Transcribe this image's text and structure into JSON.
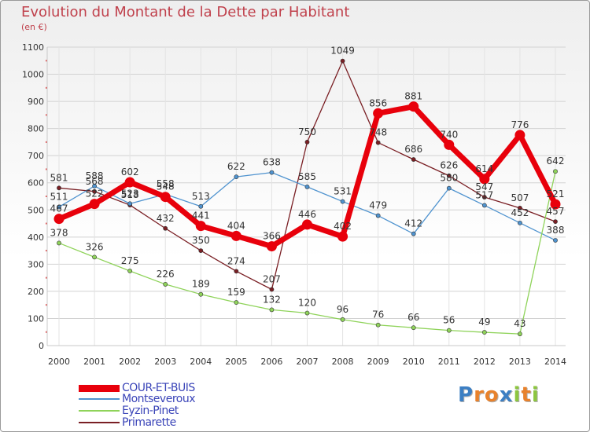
{
  "title": "Evolution du Montant de la Dette par Habitant",
  "unit_label": "(en €)",
  "logo": {
    "letters": [
      "P",
      "r",
      "o",
      "x",
      "i",
      "t",
      "i"
    ],
    "colors": [
      "#3c7fc3",
      "#e8822c",
      "#e8822c",
      "#3c7fc3",
      "#8dc63f",
      "#e8822c",
      "#8dc63f"
    ]
  },
  "chart_data": {
    "type": "line",
    "x": [
      "2000",
      "2001",
      "2002",
      "2003",
      "2004",
      "2005",
      "2006",
      "2007",
      "2008",
      "2009",
      "2010",
      "2011",
      "2012",
      "2013",
      "2014"
    ],
    "ylim": [
      0,
      1100
    ],
    "yticks": [
      "0",
      "100",
      "200",
      "300",
      "400",
      "500",
      "600",
      "700",
      "800",
      "900",
      "1000",
      "1100"
    ],
    "grid": true,
    "legend_position": "bottom-left",
    "series": [
      {
        "name": "COUR-ET-BUIS",
        "color": "#e8000b",
        "values": [
          467,
          522,
          602,
          548,
          441,
          404,
          366,
          446,
          402,
          856,
          881,
          740,
          614,
          776,
          521
        ]
      },
      {
        "name": "Montseveroux",
        "color": "#4f93cf",
        "values": [
          511,
          588,
          523,
          558,
          513,
          622,
          638,
          585,
          531,
          479,
          412,
          580,
          517,
          452,
          388
        ]
      },
      {
        "name": "Eyzin-Pinet",
        "color": "#8fd35a",
        "values": [
          378,
          326,
          275,
          226,
          189,
          159,
          132,
          120,
          96,
          76,
          66,
          56,
          49,
          43,
          642
        ]
      },
      {
        "name": "Primarette",
        "color": "#7a1f24",
        "values": [
          581,
          568,
          518,
          432,
          350,
          274,
          207,
          750,
          1049,
          748,
          686,
          626,
          547,
          507,
          457
        ]
      }
    ],
    "draw_order": [
      "Primarette",
      "Montseveroux",
      "Eyzin-Pinet",
      "COUR-ET-BUIS"
    ],
    "label_order": [
      "Eyzin-Pinet",
      "Primarette",
      "Montseveroux",
      "COUR-ET-BUIS"
    ]
  }
}
